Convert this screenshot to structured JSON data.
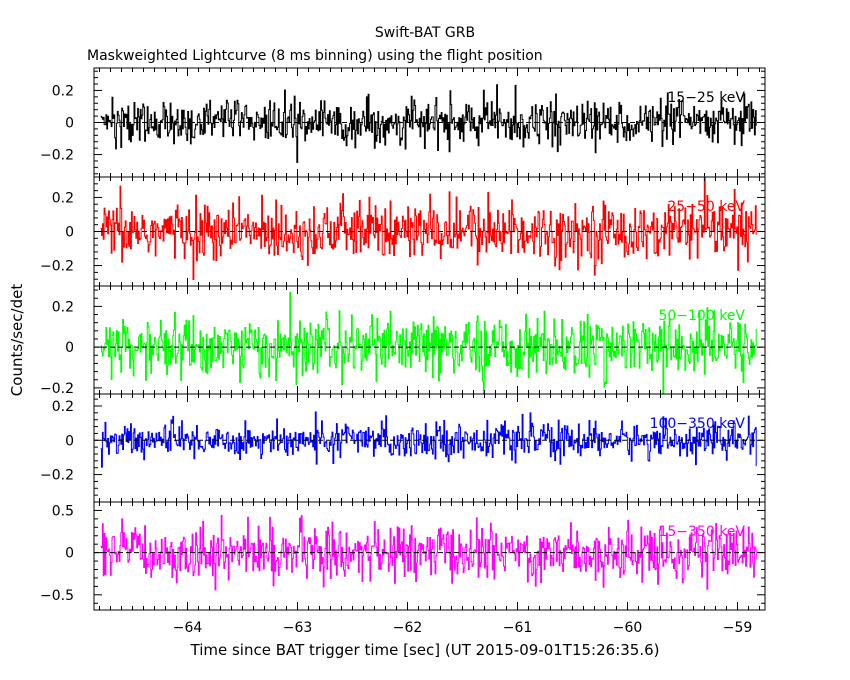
{
  "chart_data": {
    "type": "line",
    "title": "Swift-BAT GRB",
    "subtitle": "Maskweighted Lightcurve (8 ms binning) using the flight position",
    "xlabel": "Time since BAT trigger time [sec] (UT 2015-09-01T15:26:35.6)",
    "ylabel": "Counts/sec/det",
    "xlim": [
      -64.85,
      -58.75
    ],
    "x_ticks": [
      -64,
      -63,
      -62,
      -61,
      -60,
      -59
    ],
    "x_tick_labels": [
      "−64",
      "−63",
      "−62",
      "−61",
      "−60",
      "−59"
    ],
    "data_x_range": [
      -64.79,
      -58.83
    ],
    "bin_width_sec": 0.008,
    "panels": [
      {
        "name": "15-25 keV",
        "label": "15−25 keV",
        "color": "#000000",
        "ylim": [
          -0.34,
          0.34
        ],
        "y_ticks": [
          0.2,
          0,
          -0.2
        ],
        "y_tick_labels": [
          "0.2",
          "0",
          "−0.2"
        ],
        "mean": 0,
        "noise_sigma": 0.068
      },
      {
        "name": "25-50 keV",
        "label": "25−50 keV",
        "color": "#ff0000",
        "ylim": [
          -0.32,
          0.32
        ],
        "y_ticks": [
          0.2,
          0,
          -0.2
        ],
        "y_tick_labels": [
          "0.2",
          "0",
          "−0.2"
        ],
        "mean": 0,
        "noise_sigma": 0.085
      },
      {
        "name": "50-100 keV",
        "label": "50−100 keV",
        "color": "#00ff00",
        "ylim": [
          -0.23,
          0.3
        ],
        "y_ticks": [
          0.2,
          0,
          -0.2
        ],
        "y_tick_labels": [
          "0.2",
          "0",
          "−0.2"
        ],
        "mean": 0,
        "noise_sigma": 0.075
      },
      {
        "name": "100-350 keV",
        "label": "100−350 keV",
        "color": "#0000ff",
        "ylim": [
          -0.36,
          0.27
        ],
        "y_ticks": [
          0.2,
          0,
          -0.2
        ],
        "y_tick_labels": [
          "0.2",
          "0",
          "−0.2"
        ],
        "mean": 0,
        "noise_sigma": 0.05
      },
      {
        "name": "15-350 keV",
        "label": "15−350 keV",
        "color": "#ff00ff",
        "ylim": [
          -0.68,
          0.6
        ],
        "y_ticks": [
          0.5,
          0,
          -0.5
        ],
        "y_tick_labels": [
          "0.5",
          "0",
          "−0.5"
        ],
        "mean": 0,
        "noise_sigma": 0.16
      }
    ]
  }
}
